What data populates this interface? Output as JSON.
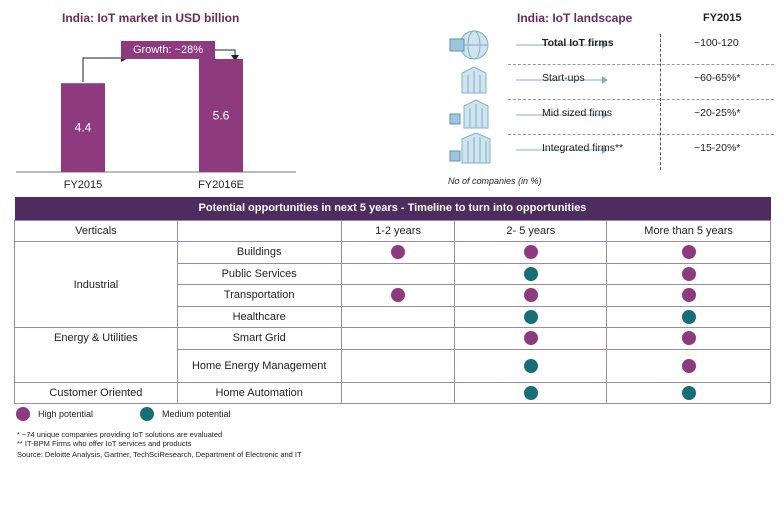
{
  "chart_data": {
    "type": "bar",
    "title": "India: IoT market in USD billion",
    "categories": [
      "FY2015",
      "FY2016E"
    ],
    "values": [
      4.4,
      5.6
    ],
    "value_labels": [
      "4.4",
      "5.6"
    ],
    "annotation": "Growth: ~28%",
    "bar_color": "#8e3a7e",
    "ylim": [
      0,
      5.6
    ],
    "grid": false
  },
  "landscape": {
    "title": "India: IoT landscape",
    "fy_label": "FY2015",
    "rows": [
      {
        "label": "Total IoT firms",
        "value": "~100-120",
        "icon": "globe-chip-icon"
      },
      {
        "label": "Start-ups",
        "value": "~60-65%*",
        "icon": "small-building-icon"
      },
      {
        "label": "Mid sized firms",
        "value": "~20-25%*",
        "icon": "medium-building-icon"
      },
      {
        "label": "Integrated firms**",
        "value": "~15-20%*",
        "icon": "large-building-icon"
      }
    ],
    "note": "No of companies (in %)"
  },
  "table": {
    "title": "Potential opportunities in next 5 years - Timeline to turn into opportunities",
    "headers": [
      "Verticals",
      "",
      "1-2 years",
      "2- 5 years",
      "More than 5 years"
    ],
    "groups": [
      {
        "vertical": "Industrial",
        "rows": [
          {
            "segment": "Buildings",
            "cells": [
              "high",
              "high",
              "high"
            ]
          },
          {
            "segment": "Public Services",
            "cells": [
              "",
              "medium",
              "high"
            ]
          },
          {
            "segment": "Transportation",
            "cells": [
              "high",
              "high",
              "high"
            ]
          },
          {
            "segment": "Healthcare",
            "cells": [
              "",
              "medium",
              "medium"
            ]
          }
        ]
      },
      {
        "vertical": "Energy & Utilities",
        "rows": [
          {
            "segment": "Smart Grid",
            "cells": [
              "",
              "high",
              "high"
            ]
          },
          {
            "segment": "Home Energy Management",
            "cells": [
              "",
              "medium",
              "high"
            ]
          }
        ]
      },
      {
        "vertical": "Customer Oriented",
        "rows": [
          {
            "segment": "Home Automation",
            "cells": [
              "",
              "medium",
              "medium"
            ]
          }
        ]
      }
    ]
  },
  "legend": {
    "high": "High potential",
    "medium": "Medium potential",
    "high_color": "#8e3a7e",
    "medium_color": "#166f76"
  },
  "footnotes": [
    "* ~74 unique companies providing IoT solutions are evaluated",
    "** IT-BPM Firms who offer IoT services and products",
    "Source: Deloitte Analysis, Gartner, TechSciResearch, Department of Electronic and IT"
  ]
}
